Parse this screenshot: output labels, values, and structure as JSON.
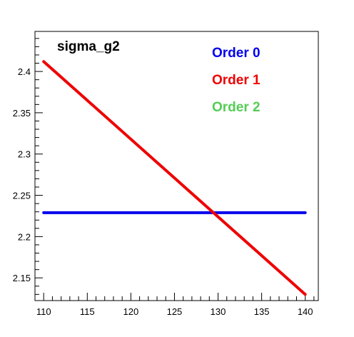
{
  "chart_data": {
    "type": "line",
    "title": "sigma_g2",
    "xlabel": "",
    "ylabel": "",
    "xlim": [
      109.0,
      141.5
    ],
    "ylim": [
      2.1225,
      2.4485
    ],
    "x_ticks": [
      {
        "value": 110,
        "label": "110"
      },
      {
        "value": 115,
        "label": "115"
      },
      {
        "value": 120,
        "label": "120"
      },
      {
        "value": 125,
        "label": "125"
      },
      {
        "value": 130,
        "label": "130"
      },
      {
        "value": 135,
        "label": "135"
      },
      {
        "value": 140,
        "label": "140"
      }
    ],
    "y_ticks": [
      {
        "value": 2.15,
        "label": "2.15"
      },
      {
        "value": 2.2,
        "label": "2.2"
      },
      {
        "value": 2.25,
        "label": "2.25"
      },
      {
        "value": 2.3,
        "label": "2.3"
      },
      {
        "value": 2.35,
        "label": "2.35"
      },
      {
        "value": 2.4,
        "label": "2.4"
      }
    ],
    "grid": false,
    "legend_position": "top-right",
    "series": [
      {
        "name": "Order 0",
        "color": "#0000ee",
        "x": [
          110,
          140
        ],
        "y": [
          2.229,
          2.229
        ]
      },
      {
        "name": "Order 1",
        "color": "#ee0000",
        "x": [
          110,
          140
        ],
        "y": [
          2.412,
          2.13
        ]
      },
      {
        "name": "Order 2",
        "color": "#55cc55",
        "x": [],
        "y": []
      }
    ]
  }
}
